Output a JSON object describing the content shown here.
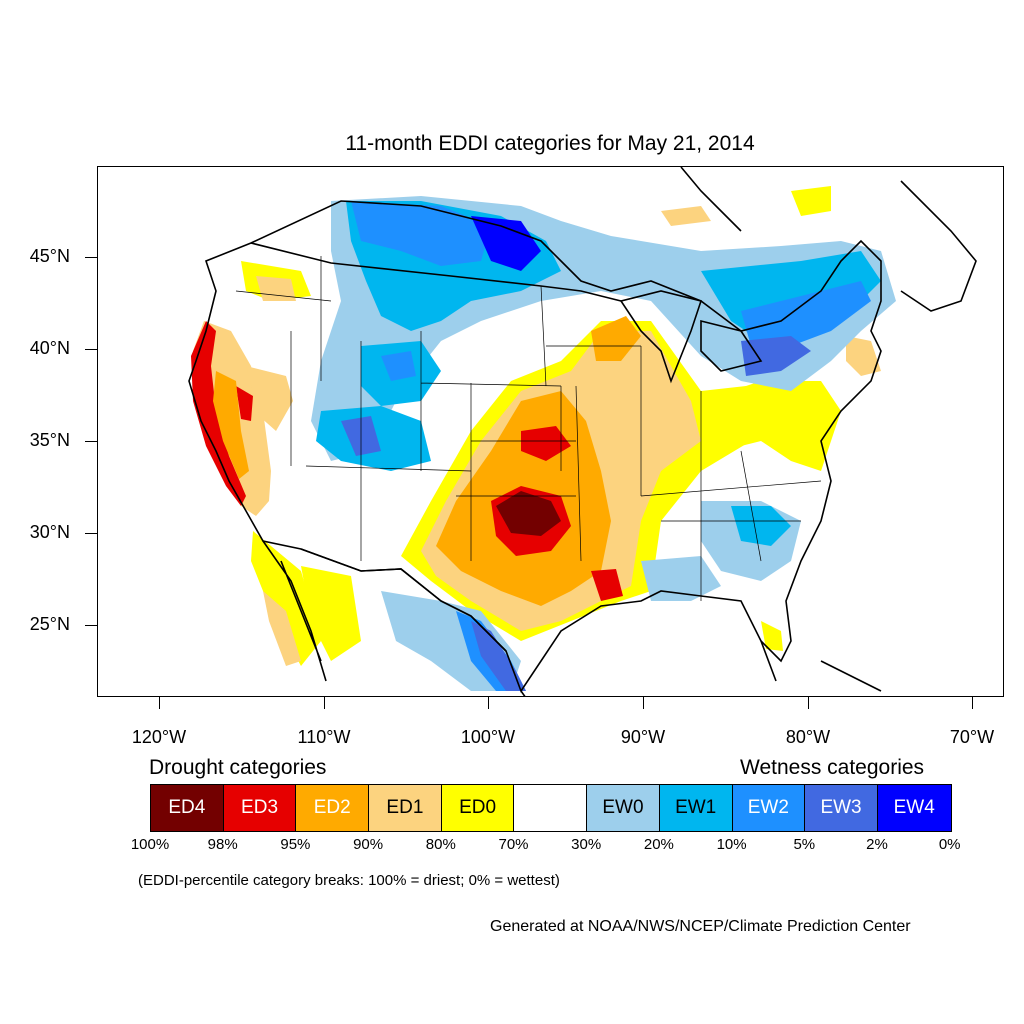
{
  "title": "11-month EDDI categories for May 21, 2014",
  "lat_labels": [
    "45°N",
    "40°N",
    "35°N",
    "30°N",
    "25°N"
  ],
  "lon_labels": [
    "120°W",
    "110°W",
    "100°W",
    "90°W",
    "80°W",
    "70°W"
  ],
  "legend": {
    "drought_heading": "Drought categories",
    "wetness_heading": "Wetness categories",
    "categories": [
      {
        "label": "ED4",
        "color": "#730000",
        "text_color": "#ffffff"
      },
      {
        "label": "ED3",
        "color": "#e60000",
        "text_color": "#ffffff"
      },
      {
        "label": "ED2",
        "color": "#ffaa00",
        "text_color": "#ffffff"
      },
      {
        "label": "ED1",
        "color": "#fcd37f",
        "text_color": "#000000"
      },
      {
        "label": "ED0",
        "color": "#ffff00",
        "text_color": "#000000"
      },
      {
        "label": "",
        "color": "#ffffff",
        "text_color": "#000000"
      },
      {
        "label": "EW0",
        "color": "#9dcfec",
        "text_color": "#000000"
      },
      {
        "label": "EW1",
        "color": "#00b6ef",
        "text_color": "#000000"
      },
      {
        "label": "EW2",
        "color": "#1e90ff",
        "text_color": "#ffffff"
      },
      {
        "label": "EW3",
        "color": "#4169e1",
        "text_color": "#ffffff"
      },
      {
        "label": "EW4",
        "color": "#0000ff",
        "text_color": "#ffffff"
      }
    ],
    "percentiles": [
      "100%",
      "98%",
      "95%",
      "90%",
      "80%",
      "70%",
      "30%",
      "20%",
      "10%",
      "5%",
      "2%",
      "0%"
    ]
  },
  "note": "(EDDI-percentile category breaks: 100% = driest; 0% = wettest)",
  "credit": "Generated at NOAA/NWS/NCEP/Climate Prediction Center"
}
